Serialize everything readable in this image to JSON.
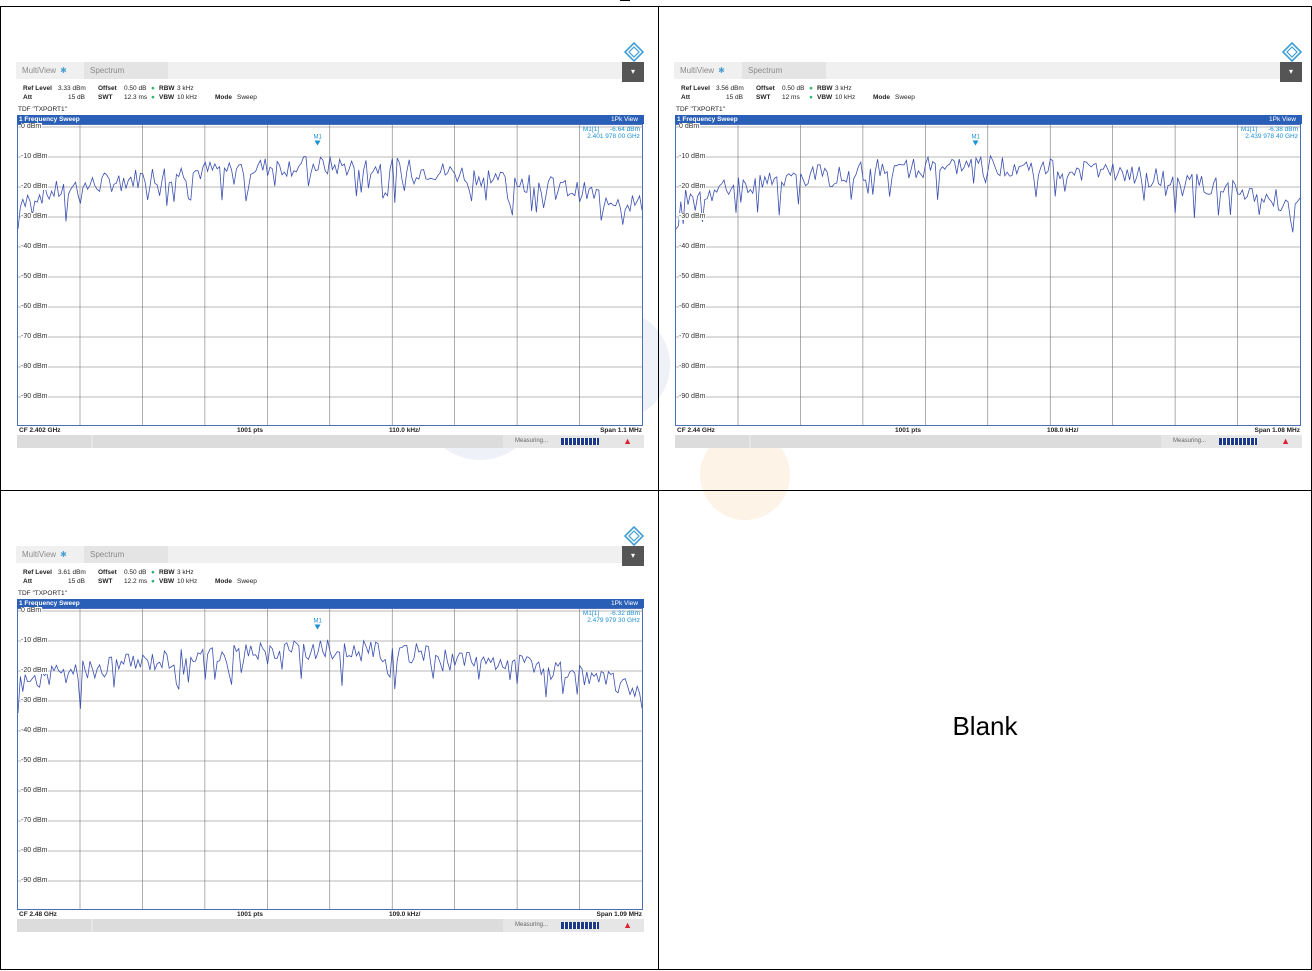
{
  "blank_label": "Blank",
  "panels": [
    {
      "tabs": {
        "multiview": "MultiView",
        "spectrum": "Spectrum"
      },
      "ref_level_label": "Ref Level",
      "ref_level": "3.33 dBm",
      "offset_label": "Offset",
      "offset": "0.50 dB",
      "rbw_label": "RBW",
      "rbw": "3 kHz",
      "att_label": "Att",
      "att": "15 dB",
      "swt_label": "SWT",
      "swt": "12.3 ms",
      "vbw_label": "VBW",
      "vbw": "10 kHz",
      "mode_label": "Mode",
      "mode": "Sweep",
      "tdf": "TDF \"TXPORT1\"",
      "sweep_title": "1 Frequency Sweep",
      "view": "1Pk View",
      "marker_name": "M1[1]",
      "marker_level": "-6.64 dBm",
      "marker_freq": "2.401 978 00 GHz",
      "marker_label": "M1",
      "cf": "CF 2.402 GHz",
      "pts": "1001 pts",
      "div": "110.0 kHz/",
      "span": "Span 1.1 MHz",
      "status": "Measuring...",
      "y_labels": [
        "0 dBm",
        "-10 dBm",
        "-20 dBm",
        "-30 dBm",
        "-40 dBm",
        "-50 dBm",
        "-60 dBm",
        "-70 dBm",
        "-80 dBm",
        "-90 dBm"
      ],
      "marker_pos": 0.48
    },
    {
      "tabs": {
        "multiview": "MultiView",
        "spectrum": "Spectrum"
      },
      "ref_level_label": "Ref Level",
      "ref_level": "3.56 dBm",
      "offset_label": "Offset",
      "offset": "0.50 dB",
      "rbw_label": "RBW",
      "rbw": "3 kHz",
      "att_label": "Att",
      "att": "15 dB",
      "swt_label": "SWT",
      "swt": "12 ms",
      "vbw_label": "VBW",
      "vbw": "10 kHz",
      "mode_label": "Mode",
      "mode": "Sweep",
      "tdf": "TDF \"TXPORT1\"",
      "sweep_title": "1 Frequency Sweep",
      "view": "1Pk View",
      "marker_name": "M1[1]",
      "marker_level": "-6.38 dBm",
      "marker_freq": "2.439 978 40 GHz",
      "marker_label": "M1",
      "cf": "CF 2.44 GHz",
      "pts": "1001 pts",
      "div": "108.0 kHz/",
      "span": "Span 1.08 MHz",
      "status": "Measuring...",
      "y_labels": [
        "0 dBm",
        "-10 dBm",
        "-20 dBm",
        "-30 dBm",
        "-40 dBm",
        "-50 dBm",
        "-60 dBm",
        "-70 dBm",
        "-80 dBm",
        "-90 dBm"
      ],
      "marker_pos": 0.48
    },
    {
      "tabs": {
        "multiview": "MultiView",
        "spectrum": "Spectrum"
      },
      "ref_level_label": "Ref Level",
      "ref_level": "3.61 dBm",
      "offset_label": "Offset",
      "offset": "0.50 dB",
      "rbw_label": "RBW",
      "rbw": "3 kHz",
      "att_label": "Att",
      "att": "15 dB",
      "swt_label": "SWT",
      "swt": "12.2 ms",
      "vbw_label": "VBW",
      "vbw": "10 kHz",
      "mode_label": "Mode",
      "mode": "Sweep",
      "tdf": "TDF \"TXPORT1\"",
      "sweep_title": "1 Frequency Sweep",
      "view": "1Pk View",
      "marker_name": "M1[1]",
      "marker_level": "-6.32 dBm",
      "marker_freq": "2.479 979 30 GHz",
      "marker_label": "M1",
      "cf": "CF 2.48 GHz",
      "pts": "1001 pts",
      "div": "109.0 kHz/",
      "span": "Span 1.09 MHz",
      "status": "Measuring...",
      "y_labels": [
        "0 dBm",
        "-10 dBm",
        "-20 dBm",
        "-30 dBm",
        "-40 dBm",
        "-50 dBm",
        "-60 dBm",
        "-70 dBm",
        "-80 dBm",
        "-90 dBm"
      ],
      "marker_pos": 0.48
    }
  ],
  "colors": {
    "trace": "#3a4fb0",
    "title_bar": "#2a5fb8",
    "marker": "#1e90d6"
  }
}
